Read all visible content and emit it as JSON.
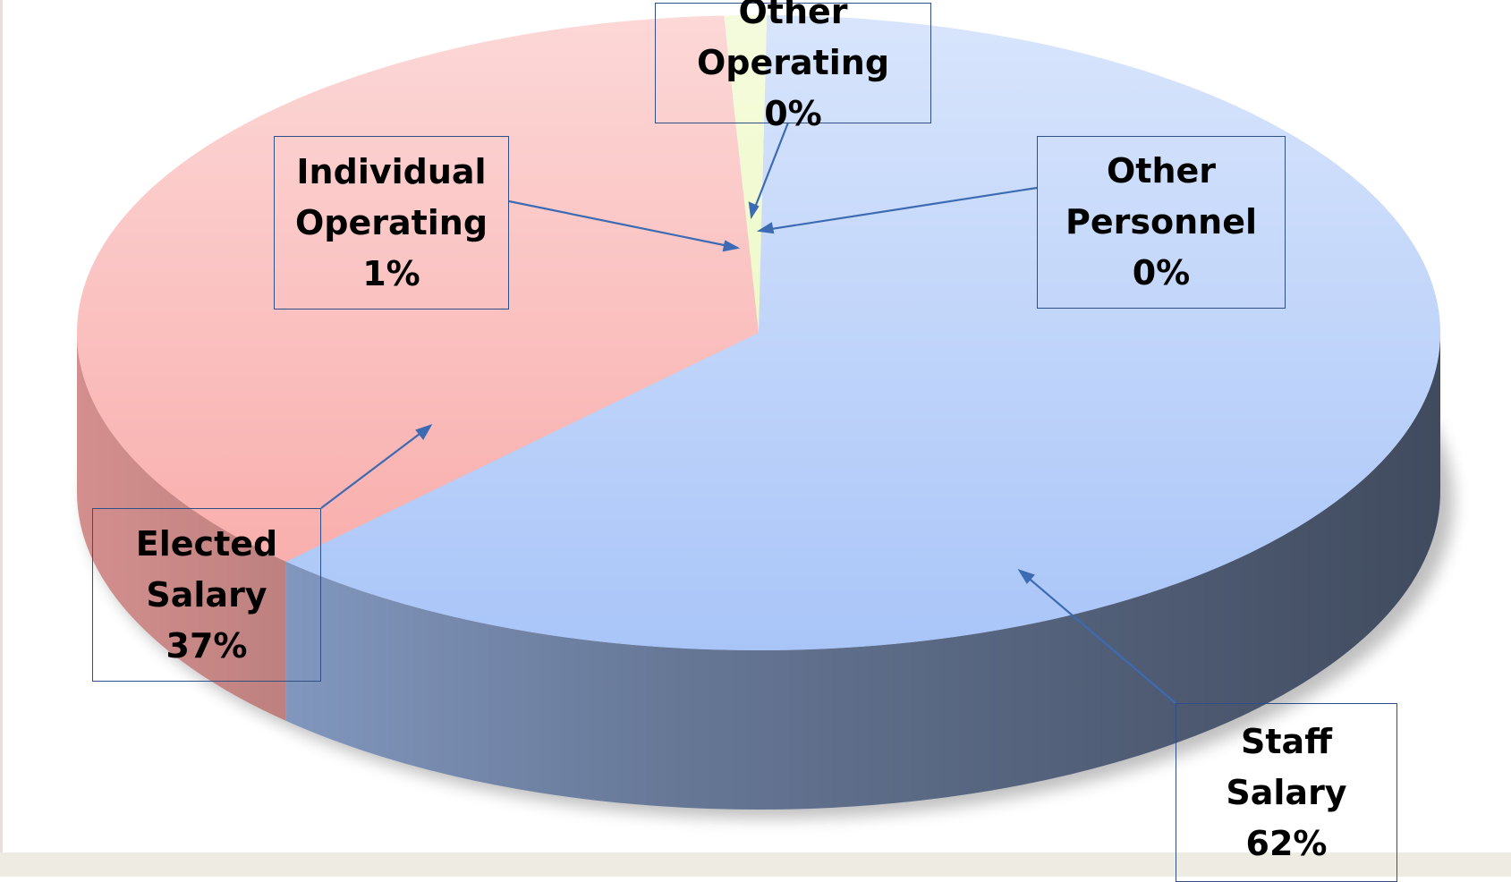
{
  "chart_data": {
    "type": "pie3d",
    "categories": [
      "Staff Salary",
      "Elected Salary",
      "Individual Operating",
      "Other Operating",
      "Other Personnel"
    ],
    "values": [
      62,
      37,
      1,
      0,
      0
    ],
    "value_labels": [
      "62%",
      "37%",
      "1%",
      "0%",
      "0%"
    ],
    "colors": [
      "#a9c5f8",
      "#f8a8a6",
      "#e8f7b4",
      "#dcd6f2",
      "#d3d2f4"
    ]
  }
}
